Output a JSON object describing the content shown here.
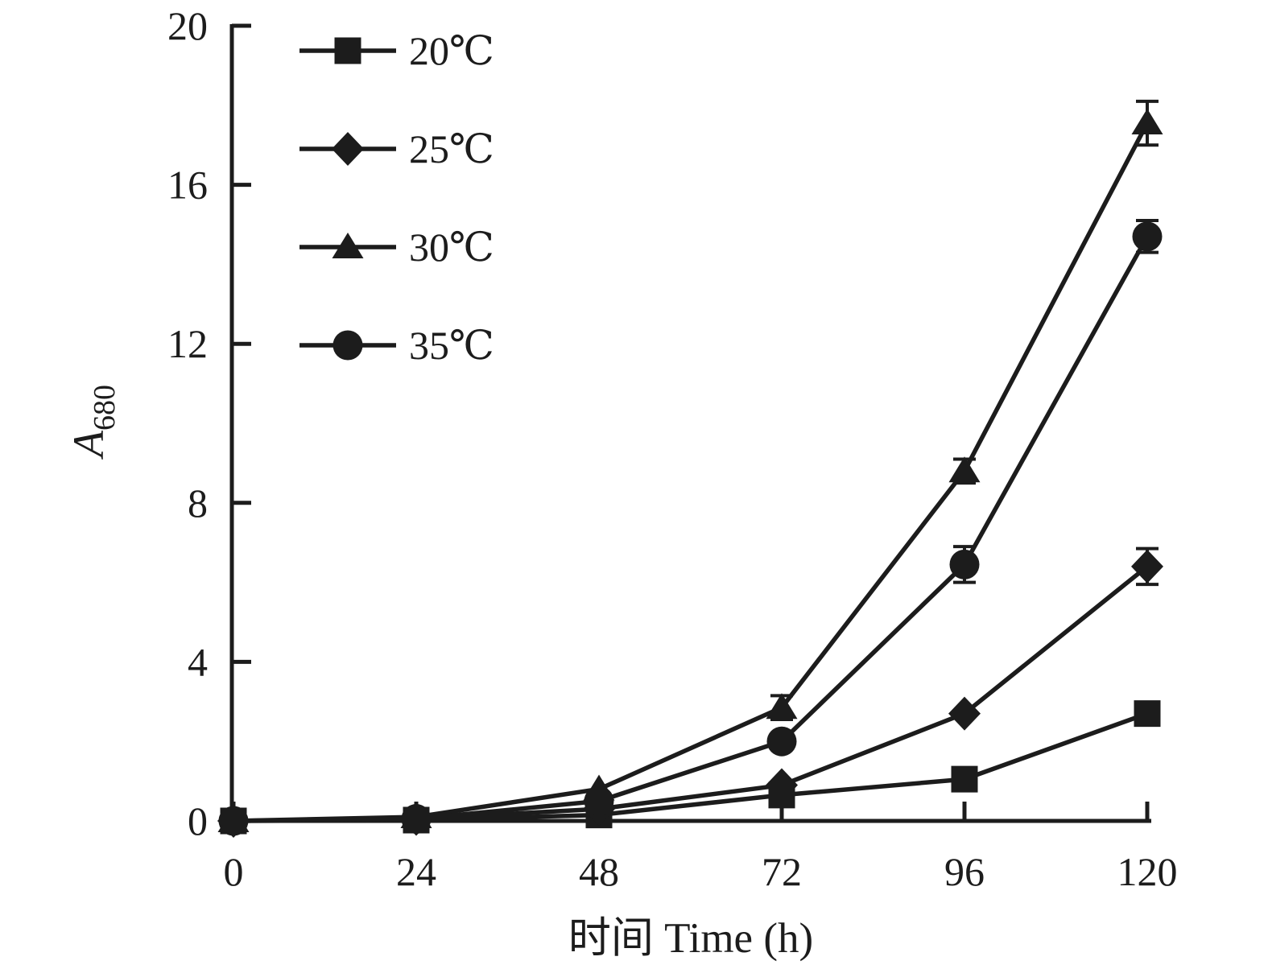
{
  "chart_data": {
    "type": "line",
    "x": [
      0,
      24,
      48,
      72,
      96,
      120
    ],
    "xticks": [
      0,
      24,
      48,
      72,
      96,
      120
    ],
    "yticks": [
      0,
      4,
      8,
      12,
      16,
      20
    ],
    "xlim": [
      0,
      120
    ],
    "ylim": [
      0,
      20
    ],
    "xlabel": "时间 Time (h)",
    "ylabel": {
      "letter": "A",
      "subscript": "680"
    },
    "grid": false,
    "legend_position": "top-left-inside",
    "line_color": "#1c1c1c",
    "background": "#ffffff",
    "series": [
      {
        "name": "20℃",
        "marker": "square",
        "values": [
          0,
          0.02,
          0.15,
          0.65,
          1.05,
          2.7
        ],
        "errors": [
          0,
          0,
          0,
          0,
          0,
          0
        ]
      },
      {
        "name": "25℃",
        "marker": "diamond",
        "values": [
          0,
          0.05,
          0.3,
          0.9,
          2.7,
          6.4
        ],
        "errors": [
          0,
          0,
          0,
          0,
          0,
          0.45
        ]
      },
      {
        "name": "30℃",
        "marker": "triangle",
        "values": [
          0,
          0.1,
          0.8,
          2.85,
          8.8,
          17.55
        ],
        "errors": [
          0,
          0,
          0,
          0.3,
          0.3,
          0.55
        ]
      },
      {
        "name": "35℃",
        "marker": "circle",
        "values": [
          0,
          0.05,
          0.5,
          2.0,
          6.45,
          14.7
        ],
        "errors": [
          0,
          0,
          0,
          0,
          0.45,
          0.4
        ]
      }
    ]
  }
}
